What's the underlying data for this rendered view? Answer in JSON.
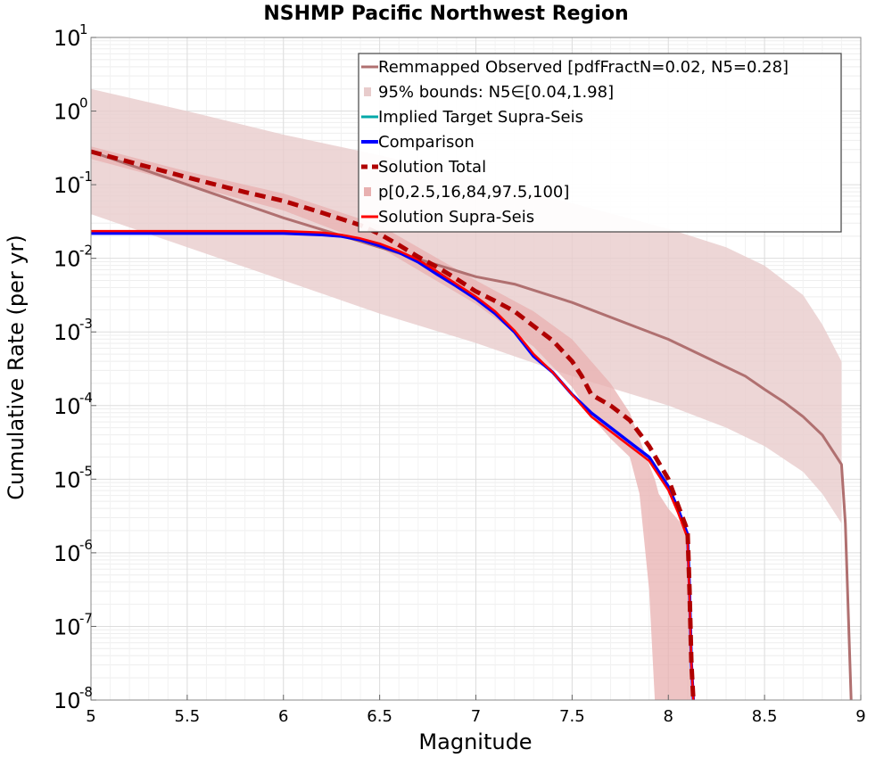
{
  "chart_data": {
    "type": "line",
    "title": "NSHMP Pacific Northwest Region",
    "xlabel": "Magnitude",
    "ylabel": "Cumulative Rate (per yr)",
    "xlim": [
      5,
      9
    ],
    "ylim_log10": [
      -8,
      1
    ],
    "yscale": "log",
    "grid": true,
    "legend_placement": "top-right",
    "xticks": [
      "5",
      "5.5",
      "6",
      "6.5",
      "7",
      "7.5",
      "8",
      "8.5",
      "9"
    ],
    "xtick_values": [
      5,
      5.5,
      6,
      6.5,
      7,
      7.5,
      8,
      8.5,
      9
    ],
    "yticks": [
      {
        "base": "10",
        "exp": "1",
        "value": 1
      },
      {
        "base": "10",
        "exp": "0",
        "value": 0
      },
      {
        "base": "10",
        "exp": "-1",
        "value": -1
      },
      {
        "base": "10",
        "exp": "-2",
        "value": -2
      },
      {
        "base": "10",
        "exp": "-3",
        "value": -3
      },
      {
        "base": "10",
        "exp": "-4",
        "value": -4
      },
      {
        "base": "10",
        "exp": "-5",
        "value": -5
      },
      {
        "base": "10",
        "exp": "-6",
        "value": -6
      },
      {
        "base": "10",
        "exp": "-7",
        "value": -7
      },
      {
        "base": "10",
        "exp": "-8",
        "value": -8
      }
    ],
    "colors": {
      "observed": "#b07070",
      "observed_band": "#e8cccc",
      "target": "#00a8a8",
      "comparison": "#0000ff",
      "total": "#b00000",
      "solution_band": "#e8b0b0",
      "supra": "#ff0000"
    },
    "legend": [
      {
        "label": "Remmapped Observed [pdfFractN=0.02, N5=0.28]",
        "key": "observed",
        "style": "line"
      },
      {
        "label": "95% bounds: N5∈[0.04,1.98]",
        "key": "observed_band",
        "style": "box"
      },
      {
        "label": "Implied Target Supra-Seis",
        "key": "target",
        "style": "line"
      },
      {
        "label": "Comparison",
        "key": "comparison",
        "style": "thick"
      },
      {
        "label": "Solution Total",
        "key": "total",
        "style": "dashed"
      },
      {
        "label": "p[0,2.5,16,84,97.5,100]",
        "key": "solution_band",
        "style": "box"
      },
      {
        "label": "Solution Supra-Seis",
        "key": "supra",
        "style": "line"
      }
    ],
    "series": [
      {
        "name": "Remmapped Observed [pdfFractN=0.02, N5=0.28]",
        "key": "observed",
        "x": [
          5,
          5.5,
          6,
          6.5,
          7,
          7.2,
          7.5,
          7.8,
          8,
          8.2,
          8.4,
          8.5,
          8.6,
          8.7,
          8.8,
          8.9,
          8.92,
          8.95
        ],
        "log10_y": [
          -0.55,
          -1.0,
          -1.45,
          -1.85,
          -2.25,
          -2.35,
          -2.6,
          -2.9,
          -3.1,
          -3.35,
          -3.6,
          -3.78,
          -3.95,
          -4.15,
          -4.4,
          -4.8,
          -5.6,
          -8.0
        ]
      },
      {
        "name": "95% bounds: N5∈[0.04,1.98]",
        "key": "observed_band",
        "x": [
          5,
          5.5,
          6,
          6.5,
          7,
          7.5,
          8,
          8.3,
          8.5,
          8.7,
          8.8,
          8.9
        ],
        "log10_upper": [
          0.3,
          0.0,
          -0.32,
          -0.6,
          -0.9,
          -1.25,
          -1.6,
          -1.85,
          -2.1,
          -2.5,
          -2.9,
          -3.4
        ],
        "log10_lower": [
          -1.4,
          -1.85,
          -2.3,
          -2.75,
          -3.15,
          -3.6,
          -4.0,
          -4.3,
          -4.55,
          -4.9,
          -5.2,
          -5.6
        ]
      },
      {
        "name": "Comparison",
        "key": "comparison",
        "x": [
          5,
          5.5,
          6,
          6.2,
          6.3,
          6.4,
          6.5,
          6.6,
          6.7,
          6.8,
          6.9,
          7.0,
          7.1,
          7.2,
          7.3,
          7.4,
          7.5,
          7.6,
          7.7,
          7.8,
          7.9,
          8.0,
          8.05,
          8.1,
          8.11,
          8.12,
          8.13
        ],
        "log10_y": [
          -1.66,
          -1.66,
          -1.66,
          -1.68,
          -1.7,
          -1.75,
          -1.83,
          -1.92,
          -2.05,
          -2.22,
          -2.38,
          -2.55,
          -2.75,
          -3.0,
          -3.33,
          -3.55,
          -3.85,
          -4.1,
          -4.3,
          -4.5,
          -4.7,
          -5.1,
          -5.4,
          -5.75,
          -6.5,
          -7.5,
          -8.0
        ]
      },
      {
        "name": "Solution Supra-Seis",
        "key": "supra",
        "x": [
          5,
          5.5,
          6,
          6.2,
          6.3,
          6.4,
          6.5,
          6.6,
          6.7,
          6.8,
          6.9,
          7.0,
          7.1,
          7.2,
          7.3,
          7.4,
          7.5,
          7.6,
          7.7,
          7.8,
          7.9,
          8.0,
          8.05,
          8.1,
          8.11,
          8.12,
          8.13
        ],
        "log10_y": [
          -1.63,
          -1.63,
          -1.63,
          -1.65,
          -1.68,
          -1.73,
          -1.8,
          -1.9,
          -2.02,
          -2.18,
          -2.35,
          -2.52,
          -2.72,
          -2.98,
          -3.3,
          -3.55,
          -3.85,
          -4.15,
          -4.35,
          -4.55,
          -4.75,
          -5.15,
          -5.45,
          -5.8,
          -6.6,
          -7.5,
          -8.0
        ]
      },
      {
        "name": "Solution Total",
        "key": "total",
        "x": [
          5,
          5.5,
          5.8,
          6.0,
          6.2,
          6.4,
          6.5,
          6.6,
          6.7,
          6.8,
          6.9,
          7.0,
          7.1,
          7.2,
          7.3,
          7.4,
          7.5,
          7.55,
          7.6,
          7.7,
          7.8,
          7.9,
          8.0,
          8.05,
          8.1,
          8.11,
          8.12,
          8.13
        ],
        "log10_y": [
          -0.55,
          -0.9,
          -1.1,
          -1.22,
          -1.38,
          -1.55,
          -1.67,
          -1.82,
          -1.98,
          -2.12,
          -2.28,
          -2.45,
          -2.58,
          -2.72,
          -2.92,
          -3.12,
          -3.4,
          -3.6,
          -3.85,
          -4.0,
          -4.2,
          -4.55,
          -5.0,
          -5.35,
          -5.7,
          -6.5,
          -7.5,
          -8.0
        ]
      },
      {
        "name": "p[0,2.5,16,84,97.5,100]",
        "key": "solution_band",
        "x": [
          5,
          5.5,
          6,
          6.5,
          7,
          7.3,
          7.5,
          7.6,
          7.7,
          7.8,
          7.85,
          7.9,
          7.93,
          7.95,
          8.0,
          8.1,
          8.12
        ],
        "log10_upper": [
          -0.48,
          -0.82,
          -1.12,
          -1.55,
          -2.3,
          -2.72,
          -3.1,
          -3.4,
          -3.7,
          -4.1,
          -4.45,
          -4.8,
          -5.0,
          -5.2,
          -5.4,
          -5.7,
          -8.0
        ],
        "log10_lower": [
          -0.65,
          -1.0,
          -1.35,
          -1.85,
          -2.62,
          -3.2,
          -3.75,
          -4.15,
          -4.45,
          -4.7,
          -5.2,
          -6.5,
          -8.0,
          -8.0,
          -8.0,
          -8.0,
          -8.0
        ]
      }
    ]
  }
}
